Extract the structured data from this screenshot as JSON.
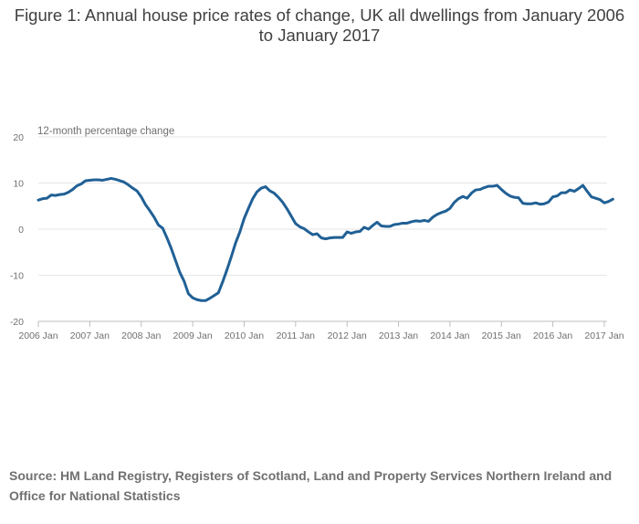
{
  "chart_data": {
    "type": "line",
    "title": "Figure 1: Annual house price rates of change, UK all dwellings from January 2006 to January 2017",
    "ylabel": "12-month percentage change",
    "xlabel": "",
    "ylim": [
      -20,
      20
    ],
    "yticks": [
      20,
      10,
      0,
      -10,
      -20
    ],
    "xticks": [
      "2006 Jan",
      "2007 Jan",
      "2008 Jan",
      "2009 Jan",
      "2010 Jan",
      "2011 Jan",
      "2012 Jan",
      "2013 Jan",
      "2014 Jan",
      "2015 Jan",
      "2016 Jan",
      "2017 Jan"
    ],
    "grid": true,
    "line_color": "#206095",
    "series": [
      {
        "start": "2006 Jan",
        "frequency": "monthly",
        "values": [
          6.3,
          6.6,
          6.7,
          7.4,
          7.3,
          7.5,
          7.6,
          8.0,
          8.6,
          9.4,
          9.8,
          10.5,
          10.6,
          10.7,
          10.7,
          10.6,
          10.8,
          11.0,
          10.8,
          10.5,
          10.2,
          9.6,
          8.9,
          8.3,
          7.0,
          5.3,
          4.0,
          2.6,
          0.9,
          0.2,
          -1.9,
          -4.2,
          -6.8,
          -9.4,
          -11.3,
          -14.0,
          -14.9,
          -15.3,
          -15.5,
          -15.5,
          -15.0,
          -14.4,
          -13.8,
          -11.4,
          -8.8,
          -6.0,
          -3.0,
          -0.6,
          2.3,
          4.5,
          6.6,
          8.1,
          8.9,
          9.2,
          8.3,
          7.8,
          6.9,
          5.8,
          4.4,
          2.8,
          1.2,
          0.5,
          0.1,
          -0.6,
          -1.2,
          -1.0,
          -1.9,
          -2.1,
          -1.9,
          -1.8,
          -1.8,
          -1.8,
          -0.6,
          -0.9,
          -0.6,
          -0.5,
          0.4,
          0.0,
          0.8,
          1.5,
          0.7,
          0.6,
          0.6,
          1.0,
          1.1,
          1.3,
          1.3,
          1.6,
          1.8,
          1.7,
          1.9,
          1.7,
          2.6,
          3.2,
          3.6,
          3.9,
          4.5,
          5.8,
          6.6,
          7.1,
          6.7,
          7.8,
          8.5,
          8.6,
          9.0,
          9.3,
          9.3,
          9.5,
          8.6,
          7.8,
          7.2,
          6.9,
          6.8,
          5.6,
          5.5,
          5.5,
          5.7,
          5.4,
          5.5,
          5.9,
          7.0,
          7.2,
          7.9,
          7.9,
          8.5,
          8.2,
          8.8,
          9.5,
          8.2,
          7.0,
          6.7,
          6.4,
          5.7,
          6.0,
          6.5
        ]
      }
    ]
  },
  "source": "Source: HM Land Registry, Registers of Scotland, Land and Property Services Northern Ireland and Office for National Statistics"
}
